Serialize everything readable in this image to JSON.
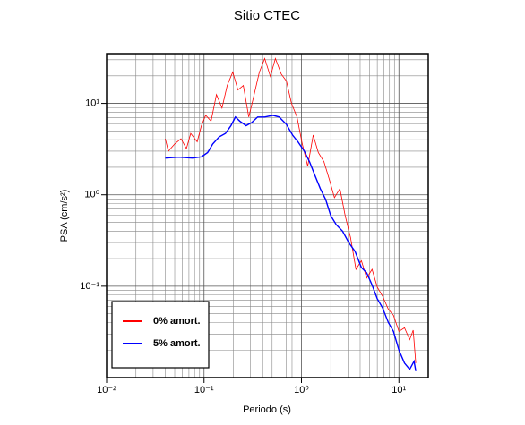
{
  "chart_data": {
    "type": "line",
    "title": "Sitio CTEC",
    "x_label": "Periodo (s)",
    "y_label": "PSA (cm/s²)",
    "xscale": "log",
    "yscale": "log",
    "grid": true,
    "legend": "lower left",
    "xlim": [
      0.01,
      20
    ],
    "ylim": [
      0.01,
      35
    ],
    "xticks": [
      {
        "value": 0.01,
        "label": "10⁻²"
      },
      {
        "value": 0.1,
        "label": "10⁻¹"
      },
      {
        "value": 1,
        "label": "10⁰"
      },
      {
        "value": 10,
        "label": "10¹"
      }
    ],
    "yticks": [
      {
        "value": 0.1,
        "label": "10⁻¹"
      },
      {
        "value": 1,
        "label": "10⁰"
      },
      {
        "value": 10,
        "label": "10¹"
      }
    ],
    "xminorticks": [
      0.02,
      0.03,
      0.04,
      0.05,
      0.06,
      0.07,
      0.08,
      0.09,
      0.2,
      0.3,
      0.4,
      0.5,
      0.6,
      0.7,
      0.8,
      0.9,
      2,
      3,
      4,
      5,
      6,
      7,
      8,
      9,
      20
    ],
    "yminorticks": [
      0.02,
      0.03,
      0.04,
      0.05,
      0.06,
      0.07,
      0.08,
      0.09,
      0.2,
      0.3,
      0.4,
      0.5,
      0.6,
      0.7,
      0.8,
      0.9,
      2,
      3,
      4,
      5,
      6,
      7,
      8,
      9,
      20,
      30
    ],
    "series": [
      {
        "name": "0% amort.",
        "color": "#ff0000",
        "x": [
          0.04,
          0.043,
          0.05,
          0.058,
          0.066,
          0.073,
          0.085,
          0.094,
          0.104,
          0.118,
          0.134,
          0.153,
          0.173,
          0.197,
          0.223,
          0.253,
          0.288,
          0.327,
          0.37,
          0.42,
          0.48,
          0.54,
          0.62,
          0.7,
          0.79,
          0.9,
          1.02,
          1.16,
          1.32,
          1.49,
          1.7,
          1.93,
          2.18,
          2.48,
          2.81,
          3.19,
          3.62,
          4.12,
          4.67,
          5.3,
          6.0,
          6.8,
          7.8,
          8.8,
          10.0,
          11.4,
          12.9,
          14.0,
          14.9
        ],
        "values": [
          4.1,
          3.0,
          3.6,
          4.1,
          3.2,
          4.7,
          3.8,
          5.7,
          7.4,
          6.4,
          12.5,
          8.9,
          15.7,
          22,
          14,
          15.7,
          7.1,
          12.5,
          22,
          31,
          19.7,
          31,
          21,
          17.5,
          10,
          7.1,
          3.6,
          2.06,
          4.5,
          2.9,
          2.3,
          1.47,
          0.93,
          1.17,
          0.59,
          0.34,
          0.153,
          0.19,
          0.123,
          0.153,
          0.098,
          0.078,
          0.056,
          0.048,
          0.032,
          0.035,
          0.026,
          0.033,
          0.0144
        ]
      },
      {
        "name": "5% amort.",
        "color": "#0000ff",
        "x": [
          0.04,
          0.055,
          0.076,
          0.094,
          0.109,
          0.123,
          0.143,
          0.166,
          0.189,
          0.21,
          0.233,
          0.27,
          0.31,
          0.355,
          0.42,
          0.51,
          0.59,
          0.7,
          0.81,
          0.92,
          1.07,
          1.21,
          1.37,
          1.56,
          1.77,
          2.0,
          2.28,
          2.64,
          3.06,
          3.55,
          4.12,
          4.67,
          5.3,
          6.0,
          6.8,
          7.8,
          8.8,
          10.0,
          11.4,
          12.9,
          14.3,
          14.9
        ],
        "values": [
          2.52,
          2.58,
          2.52,
          2.6,
          2.9,
          3.6,
          4.3,
          4.7,
          5.7,
          7.1,
          6.4,
          5.7,
          6.2,
          7.1,
          7.1,
          7.4,
          7.1,
          5.9,
          4.5,
          3.8,
          3.0,
          2.3,
          1.64,
          1.17,
          0.89,
          0.59,
          0.47,
          0.4,
          0.3,
          0.24,
          0.16,
          0.14,
          0.103,
          0.073,
          0.058,
          0.04,
          0.032,
          0.02,
          0.0144,
          0.0123,
          0.0151,
          0.0118
        ]
      }
    ]
  }
}
